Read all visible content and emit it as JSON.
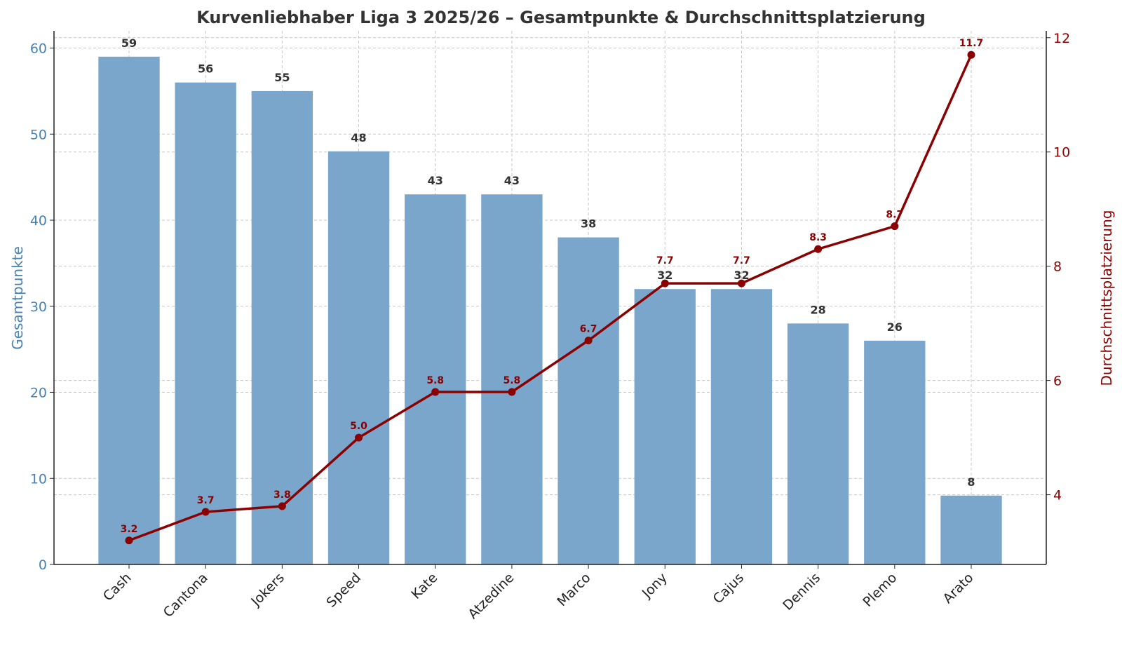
{
  "chart_data": {
    "type": "bar+line",
    "title": "Kurvenliebhaber Liga 3 2025/26 – Gesamtpunkte & Durchschnittsplatzierung",
    "xlabel": "",
    "ylabel": "Gesamtpunkte",
    "y2label": "Durchschnittsplatzierung",
    "categories": [
      "Cash",
      "Cantona",
      "Jokers",
      "Speed",
      "Kate",
      "Atzedine",
      "Marco",
      "Jony",
      "Cajus",
      "Dennis",
      "Plemo",
      "Arato"
    ],
    "series": [
      {
        "name": "Gesamtpunkte",
        "type": "bar",
        "axis": "left",
        "color": "#7ba6cb",
        "values": [
          59,
          56,
          55,
          48,
          43,
          43,
          38,
          32,
          32,
          28,
          26,
          8
        ],
        "labels": [
          "59",
          "56",
          "55",
          "48",
          "43",
          "43",
          "38",
          "32",
          "32",
          "28",
          "26",
          "8"
        ]
      },
      {
        "name": "Durchschnittsplatzierung",
        "type": "line",
        "axis": "right",
        "color": "#8b0000",
        "values": [
          3.2,
          3.7,
          3.8,
          5.0,
          5.8,
          5.8,
          6.7,
          7.7,
          7.7,
          8.3,
          8.7,
          11.7
        ],
        "labels": [
          "3.2",
          "3.7",
          "3.8",
          "5.0",
          "5.8",
          "5.8",
          "6.7",
          "7.7",
          "7.7",
          "8.3",
          "8.7",
          "11.7"
        ]
      }
    ],
    "ylim": [
      0,
      62
    ],
    "y2lim": [
      2.78,
      12.12
    ],
    "yticks": [
      "0",
      "10",
      "20",
      "30",
      "40",
      "50",
      "60"
    ],
    "y2ticks": [
      "4",
      "6",
      "8",
      "10",
      "12"
    ],
    "grid": true,
    "left_axis_color": "#4682b4",
    "right_axis_color": "#8b0000"
  }
}
